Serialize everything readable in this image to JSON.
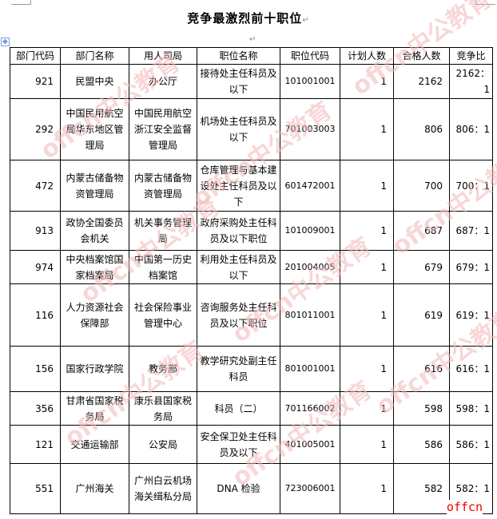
{
  "title": "竞争最激烈前十职位",
  "headers": [
    "部门代码",
    "部门名称",
    "用人司局",
    "职位名称",
    "职位代码",
    "计划人数",
    "合格人数",
    "竞争比"
  ],
  "rows": [
    [
      "921",
      "民盟中央",
      "办公厅",
      "接待处主任科员及以下",
      "101001001",
      "1",
      "2162",
      "2162：1"
    ],
    [
      "292",
      "中国民用航空局华东地区管理局",
      "中国民用航空浙江安全监督管理局",
      "机场处主任科员及以下",
      "701003003",
      "1",
      "806",
      "806：1"
    ],
    [
      "472",
      "内蒙古储备物资管理局",
      "内蒙古储备物资管理局",
      "仓库管理与基本建设处主任科员及以下",
      "601472001",
      "1",
      "700",
      "700：1"
    ],
    [
      "913",
      "政协全国委员会机关",
      "机关事务管理局",
      "政府采购处主任科员及以下职位",
      "101009001",
      "1",
      "687",
      "687：1"
    ],
    [
      "974",
      "中央档案馆国家档案局",
      "中国第一历史档案馆",
      "利用处主任科员及以下",
      "201004005",
      "1",
      "679",
      "679：1"
    ],
    [
      "116",
      "人力资源社会保障部",
      "社会保险事业管理中心",
      "咨询服务处主任科员及以下职位",
      "801011001",
      "1",
      "619",
      "619：1"
    ],
    [
      "156",
      "国家行政学院",
      "教务部",
      "教学研究处副主任科员",
      "801001001",
      "1",
      "616",
      "616：1"
    ],
    [
      "356",
      "甘肃省国家税务局",
      "康乐县国家税务局",
      "科员（二）",
      "701166002",
      "1",
      "598",
      "598：1"
    ],
    [
      "121",
      "交通运输部",
      "公安局",
      "安全保卫处主任科员及以下",
      "401005001",
      "1",
      "586",
      "586：1"
    ],
    [
      "551",
      "广州海关",
      "广州白云机场海关缉私分局",
      "DNA 检验",
      "723006001",
      "1",
      "582",
      "582：1"
    ]
  ],
  "watermark": "offcn中公教育",
  "logo": "offcn",
  "colors": {
    "watermark": "#f3b8b8",
    "logo": "#e00000"
  }
}
